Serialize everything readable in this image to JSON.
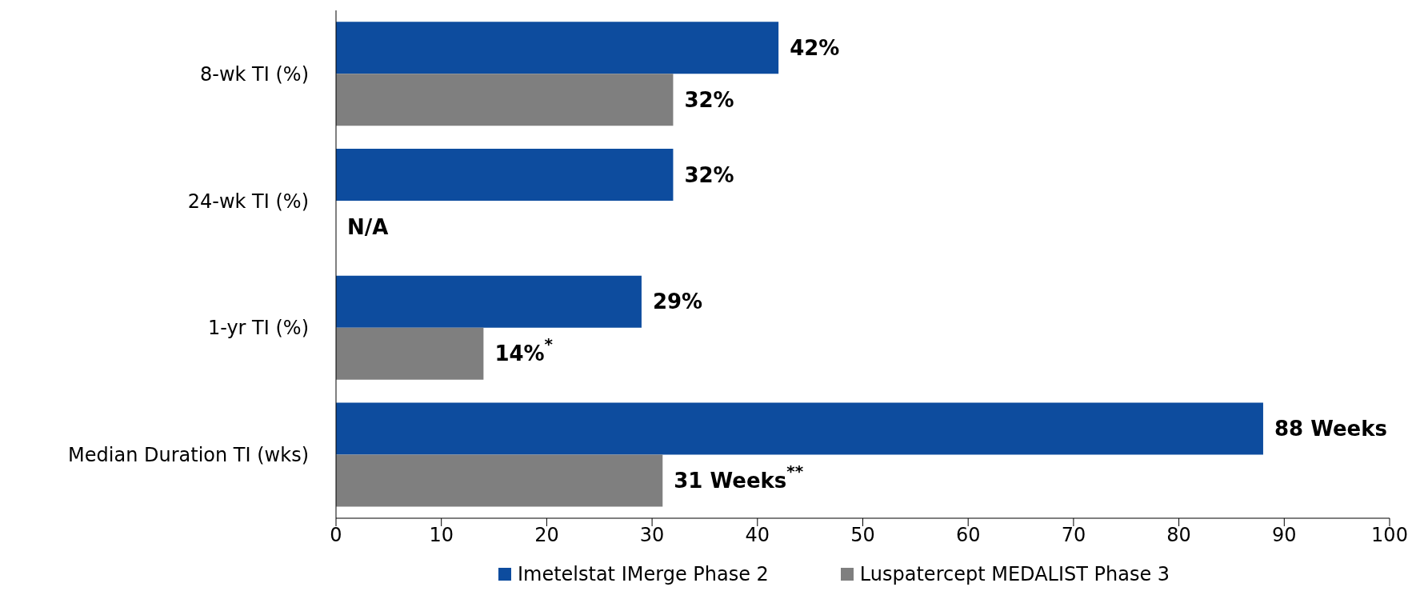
{
  "chart_data": {
    "type": "bar",
    "orientation": "horizontal",
    "categories": [
      "8-wk TI (%)",
      "24-wk TI (%)",
      "1-yr TI (%)",
      "Median Duration TI (wks)"
    ],
    "series": [
      {
        "name": "Imetelstat IMerge Phase 2",
        "color": "#0d4c9e",
        "values": [
          42,
          32,
          29,
          88
        ],
        "value_labels": [
          "42%",
          "32%",
          "29%",
          "88 Weeks"
        ]
      },
      {
        "name": "Luspatercept MEDALIST Phase 3",
        "color": "#7f7f7f",
        "values": [
          32,
          null,
          14,
          31
        ],
        "value_labels": [
          "32%",
          "N/A",
          "14%$^{*}$",
          "31 Weeks$^{**}$"
        ]
      }
    ],
    "xlim": [
      0,
      100
    ],
    "xticks": [
      0,
      10,
      20,
      30,
      40,
      50,
      60,
      70,
      80,
      90,
      100
    ],
    "legend": "bottom"
  }
}
